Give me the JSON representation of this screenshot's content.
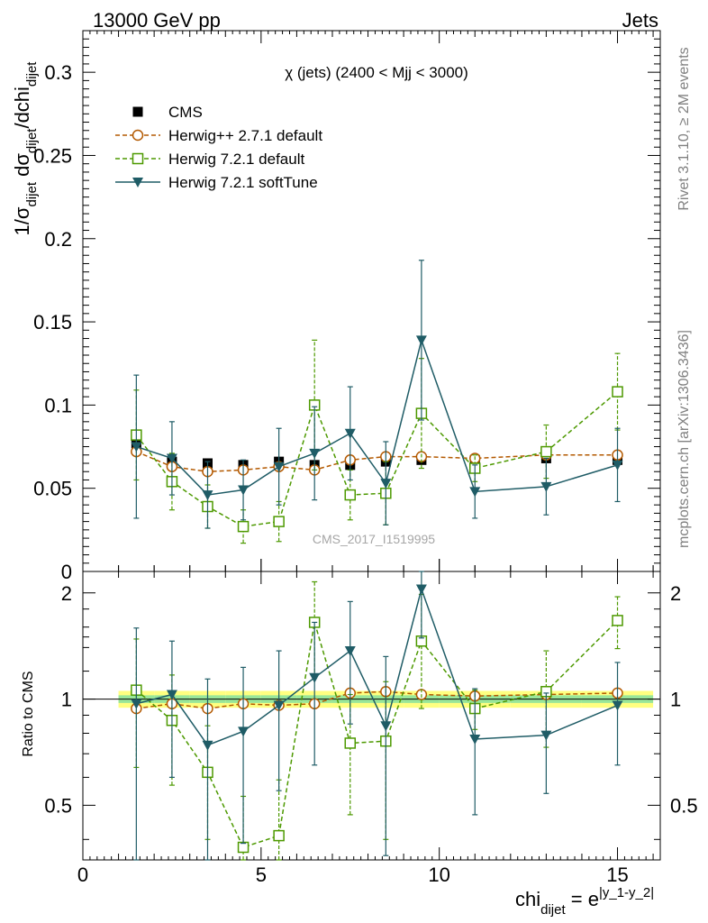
{
  "header": {
    "left": "13000 GeV pp",
    "right": "Jets"
  },
  "side_labels": {
    "rivet": "Rivet 3.1.10, ≥ 2M events",
    "mcplots": "mcplots.cern.ch [arXiv:1306.3436]"
  },
  "watermark": "CMS_2017_I1519995",
  "chart_data": {
    "type": "scatter",
    "title": "χ (jets) (2400 < Mjj < 3000)",
    "xlabel": "chi_dijet = e^|y_1-y_2|",
    "ylabel_main": "1/σ_dijet dσ_dijet/dchi_dijet",
    "ylabel_ratio": "Ratio to CMS",
    "xlim": [
      0,
      16.2
    ],
    "ylim_main": [
      0,
      0.325
    ],
    "ylim_ratio": [
      0.35,
      2.3
    ],
    "x_ticks": [
      "0",
      "5",
      "10",
      "15"
    ],
    "y_ticks_main": [
      "0",
      "0.05",
      "0.1",
      "0.15",
      "0.2",
      "0.25",
      "0.3"
    ],
    "y_ticks_ratio": [
      "0.5",
      "1",
      "2"
    ],
    "x": [
      1.5,
      2.5,
      3.5,
      4.5,
      5.5,
      6.5,
      7.5,
      8.5,
      9.5,
      11,
      13,
      15
    ],
    "cms_bins": [
      [
        1,
        2
      ],
      [
        2,
        3
      ],
      [
        3,
        4
      ],
      [
        4,
        5
      ],
      [
        5,
        6
      ],
      [
        6,
        7
      ],
      [
        7,
        8
      ],
      [
        8,
        9
      ],
      [
        9,
        10
      ],
      [
        10,
        12
      ],
      [
        12,
        14
      ],
      [
        14,
        16
      ]
    ],
    "ratio_band": {
      "inner": 0.025,
      "outer": 0.055
    },
    "series": [
      {
        "name": "CMS",
        "style": "data",
        "color": "#000000",
        "values": [
          0.077,
          0.066,
          0.065,
          0.064,
          0.066,
          0.064,
          0.064,
          0.066,
          0.067,
          0.067,
          0.068,
          0.067
        ],
        "errors": [
          0.002,
          0.002,
          0.002,
          0.002,
          0.002,
          0.002,
          0.002,
          0.002,
          0.002,
          0.002,
          0.002,
          0.002
        ]
      },
      {
        "name": "Herwig++ 2.7.1 default",
        "style": "circle",
        "color": "#b35900",
        "dash": true,
        "values": [
          0.072,
          0.063,
          0.06,
          0.061,
          0.063,
          0.061,
          0.067,
          0.069,
          0.069,
          0.068,
          0.07,
          0.07
        ],
        "errors": [
          0.002,
          0.002,
          0.002,
          0.002,
          0.002,
          0.002,
          0.002,
          0.002,
          0.002,
          0.002,
          0.002,
          0.002
        ],
        "ratio": [
          0.94,
          0.97,
          0.94,
          0.97,
          0.96,
          0.97,
          1.04,
          1.05,
          1.03,
          1.02,
          1.03,
          1.04
        ],
        "ratio_errors": [
          0.02,
          0.02,
          0.02,
          0.02,
          0.02,
          0.02,
          0.02,
          0.02,
          0.02,
          0.02,
          0.02,
          0.02
        ]
      },
      {
        "name": "Herwig 7.2.1 default",
        "style": "square",
        "color": "#4d9900",
        "dash": true,
        "values": [
          0.082,
          0.054,
          0.039,
          0.027,
          0.03,
          0.1,
          0.046,
          0.047,
          0.095,
          0.062,
          0.072,
          0.108
        ],
        "errors": [
          0.027,
          0.017,
          0.013,
          0.01,
          0.012,
          0.039,
          0.015,
          0.019,
          0.033,
          0.008,
          0.016,
          0.023
        ],
        "ratio": [
          1.06,
          0.87,
          0.62,
          0.38,
          0.41,
          1.65,
          0.75,
          0.76,
          1.46,
          0.94,
          1.05,
          1.67
        ],
        "ratio_errors": [
          0.42,
          0.3,
          0.22,
          0.15,
          0.18,
          0.5,
          0.28,
          0.36,
          0.52,
          0.12,
          0.32,
          0.28
        ]
      },
      {
        "name": "Herwig 7.2.1 softTune",
        "style": "triangle",
        "color": "#1f5c66",
        "dash": false,
        "values": [
          0.075,
          0.068,
          0.046,
          0.049,
          0.063,
          0.071,
          0.083,
          0.053,
          0.139,
          0.048,
          0.051,
          0.064
        ],
        "errors": [
          0.043,
          0.022,
          0.02,
          0.018,
          0.023,
          0.028,
          0.028,
          0.025,
          0.048,
          0.016,
          0.017,
          0.022
        ],
        "ratio": [
          0.97,
          1.03,
          0.74,
          0.81,
          0.96,
          1.15,
          1.37,
          0.84,
          2.05,
          0.77,
          0.79,
          0.96
        ],
        "ratio_errors": [
          0.62,
          0.43,
          0.4,
          0.42,
          0.41,
          0.5,
          0.52,
          0.48,
          0.56,
          0.3,
          0.25,
          0.31
        ]
      }
    ]
  }
}
